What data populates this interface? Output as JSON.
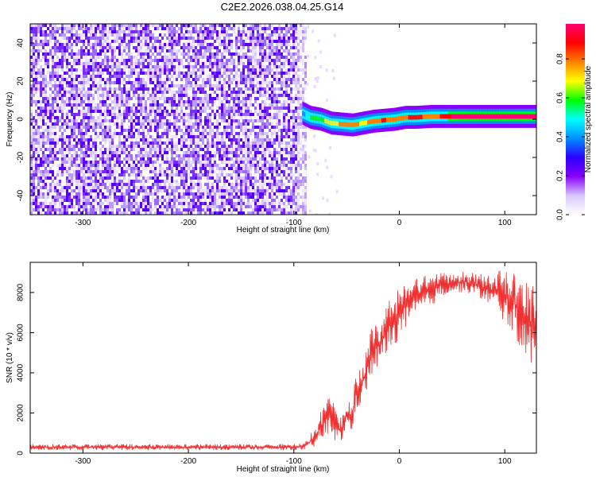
{
  "figure": {
    "title": "C2E2.2026.038.04.25.G14"
  },
  "chart_data": [
    {
      "type": "heatmap",
      "xlabel": "Height of straight line (km)",
      "ylabel": "Frequency (Hz)",
      "xlim": [
        -350,
        130
      ],
      "ylim": [
        -50,
        50
      ],
      "xticks": [
        -300,
        -200,
        -100,
        0,
        100
      ],
      "yticks": [
        -40,
        -20,
        0,
        20,
        40
      ],
      "grid": false,
      "noise_region_end_km": -90,
      "ridge": {
        "description_values": "dominant frequency vs height",
        "x": [
          -92,
          -85,
          -75,
          -65,
          -55,
          -45,
          -35,
          -25,
          -15,
          -5,
          5,
          15,
          30,
          50,
          70,
          90,
          110,
          130
        ],
        "y": [
          3,
          1,
          0,
          -2,
          -2.5,
          -3,
          -2,
          -1,
          -0.5,
          0,
          1,
          1,
          1.5,
          1.5,
          1.5,
          1.5,
          1.5,
          1.5
        ],
        "amplitude": [
          0.4,
          0.55,
          0.6,
          0.7,
          0.75,
          0.8,
          0.7,
          0.8,
          0.85,
          0.75,
          0.8,
          0.9,
          0.75,
          0.95,
          0.97,
          0.95,
          0.97,
          0.98
        ]
      },
      "colorbar": {
        "label": "Normalized spectral amplitude",
        "range": [
          0,
          0.98
        ],
        "ticks": [
          0.0,
          0.2,
          0.4,
          0.6,
          0.8
        ],
        "tick_labels": [
          "0.0",
          "0.2",
          "0.4",
          "0.6",
          "0.8"
        ],
        "colors": [
          "#ffffff",
          "#d8c8ff",
          "#8a00ff",
          "#2b00ff",
          "#0090ff",
          "#00ffff",
          "#00ff00",
          "#ffff00",
          "#ff8000",
          "#ff0000",
          "#ff0070"
        ]
      }
    },
    {
      "type": "line",
      "xlabel": "Height of straight line (km)",
      "ylabel": "SNR (10 * v/v)",
      "xlim": [
        -350,
        130
      ],
      "ylim": [
        0,
        9500
      ],
      "xticks": [
        -300,
        -200,
        -100,
        0,
        100
      ],
      "yticks": [
        0,
        2000,
        4000,
        6000,
        8000
      ],
      "grid": false,
      "series": [
        {
          "name": "SNR",
          "color": "#f03030",
          "x": [
            -350,
            -300,
            -200,
            -100,
            -90,
            -80,
            -70,
            -65,
            -60,
            -55,
            -50,
            -45,
            -40,
            -35,
            -30,
            -25,
            -20,
            -15,
            -10,
            -5,
            0,
            10,
            20,
            30,
            40,
            50,
            60,
            70,
            80,
            90,
            100,
            110,
            120,
            130
          ],
          "y_low": [
            150,
            150,
            150,
            150,
            150,
            300,
            700,
            1000,
            500,
            500,
            1300,
            1000,
            2200,
            2500,
            3200,
            3800,
            4300,
            4700,
            5000,
            5200,
            5800,
            6400,
            7000,
            7300,
            7800,
            8000,
            8000,
            7900,
            7600,
            7200,
            6500,
            5800,
            4500,
            4000
          ],
          "y_high": [
            450,
            450,
            450,
            450,
            500,
            1300,
            2700,
            3000,
            2000,
            1800,
            2500,
            2900,
            4100,
            4500,
            5700,
            6400,
            6500,
            6900,
            7700,
            8000,
            8200,
            8500,
            8800,
            8900,
            9000,
            8900,
            9100,
            9000,
            8900,
            9000,
            9200,
            8900,
            8700,
            8500
          ]
        }
      ]
    }
  ]
}
